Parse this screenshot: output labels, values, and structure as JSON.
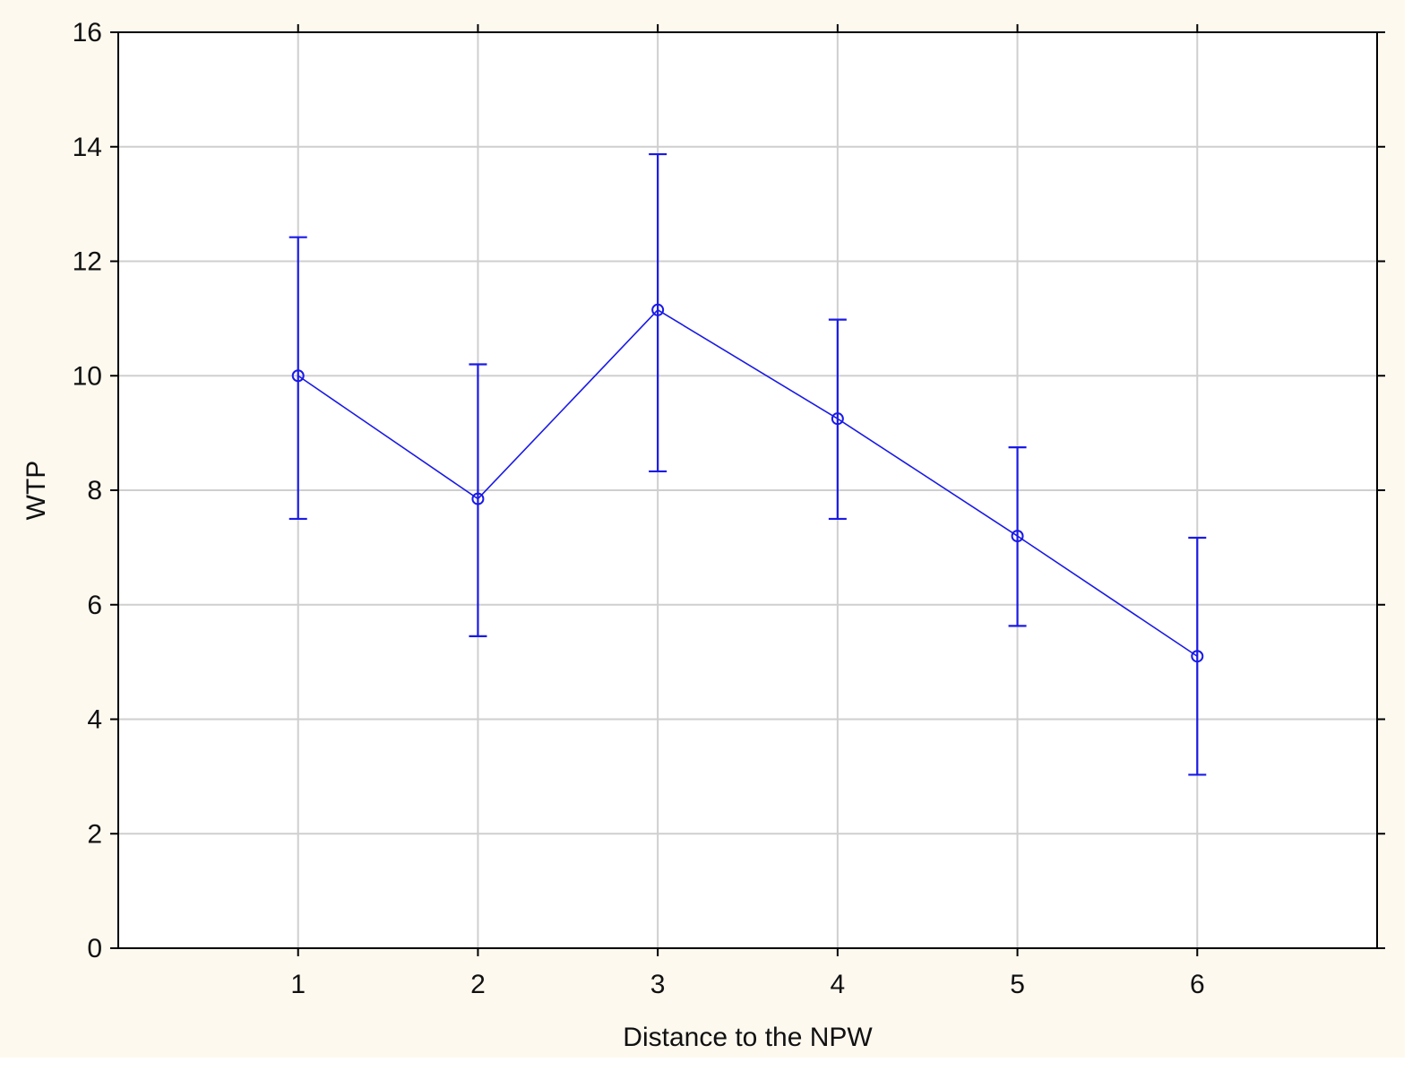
{
  "chart_data": {
    "type": "line",
    "title": "",
    "xlabel": "Distance to the NPW",
    "ylabel": "WTP",
    "categories": [
      "1",
      "2",
      "3",
      "4",
      "5",
      "6"
    ],
    "x": [
      1,
      2,
      3,
      4,
      5,
      6
    ],
    "series": [
      {
        "values": [
          10.0,
          7.85,
          11.15,
          9.25,
          7.2,
          5.1
        ],
        "error_upper": [
          12.42,
          10.2,
          13.87,
          10.98,
          8.75,
          7.17
        ],
        "error_lower": [
          7.5,
          5.45,
          8.33,
          7.5,
          5.63,
          3.03
        ]
      }
    ],
    "xlim": [
      0,
      7
    ],
    "ylim": [
      0,
      16
    ],
    "yticks": [
      0,
      2,
      4,
      6,
      8,
      10,
      12,
      14,
      16
    ],
    "grid": true,
    "legend": "none",
    "colors": {
      "series": "#1a1ae6",
      "grid": "#cfcfcf",
      "axis": "#000000",
      "background": "#fdf9ef",
      "plot_background": "#ffffff"
    }
  }
}
